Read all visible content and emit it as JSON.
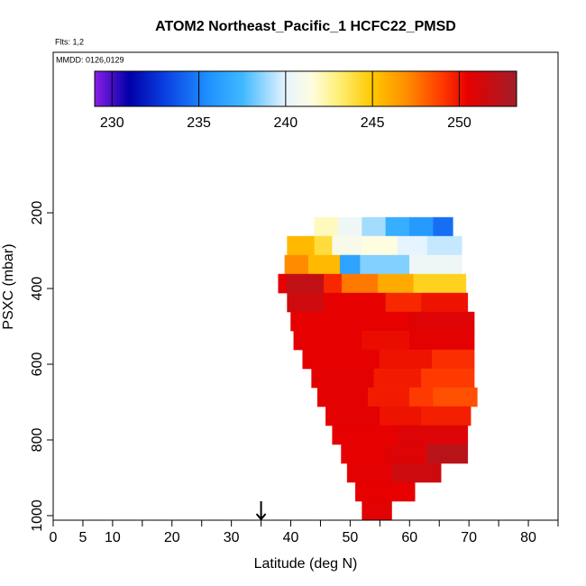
{
  "chart_data": {
    "type": "curtain",
    "title": "ATOM2 Northeast_Pacific_1 HCFC22_PMSD",
    "subtitle": "Flts: 1,2",
    "annotation": "MMDD: 0126,0129",
    "x_label": "Latitude (deg N)",
    "y_label": "PSXC (mbar)",
    "xlim": [
      0,
      85
    ],
    "xticks": [
      0,
      5,
      10,
      20,
      30,
      40,
      50,
      60,
      70,
      80
    ],
    "x_minor_ticks": [
      15,
      25,
      35,
      45,
      55,
      65,
      75,
      85
    ],
    "ylim": [
      1012,
      -224
    ],
    "yticks": [
      200,
      400,
      600,
      800,
      1000
    ],
    "clim": [
      229,
      253.3
    ],
    "cticks": [
      230,
      235,
      240,
      245,
      250
    ],
    "colormap": [
      [
        229,
        "#8a1ee6"
      ],
      [
        231,
        "#0000a8"
      ],
      [
        233,
        "#0a3ee0"
      ],
      [
        235.5,
        "#1e90ff"
      ],
      [
        237.5,
        "#3fb8ff"
      ],
      [
        240,
        "#e6f4ff"
      ],
      [
        241.5,
        "#fffde0"
      ],
      [
        243,
        "#fff07a"
      ],
      [
        245,
        "#ffc800"
      ],
      [
        247,
        "#ff8c00"
      ],
      [
        249,
        "#ff3a00"
      ],
      [
        250.5,
        "#e60000"
      ],
      [
        253.3,
        "#a01e28"
      ]
    ],
    "arrow_lat": 35,
    "rows": [
      {
        "p": [
          212,
          262
        ],
        "cells": [
          [
            44,
            48,
            242
          ],
          [
            48,
            52,
            240.5
          ],
          [
            52,
            56,
            239
          ],
          [
            56,
            60,
            237
          ],
          [
            60,
            64,
            236
          ],
          [
            64,
            67.3,
            234.5
          ]
        ]
      },
      {
        "p": [
          262,
          312
        ],
        "cells": [
          [
            39.4,
            44,
            245.5
          ],
          [
            44,
            47,
            244
          ],
          [
            47,
            52,
            241
          ],
          [
            52,
            58,
            241.5
          ],
          [
            58,
            63,
            240
          ],
          [
            63,
            68.8,
            239.5
          ]
        ]
      },
      {
        "p": [
          312,
          362
        ],
        "cells": [
          [
            39,
            43,
            247
          ],
          [
            43,
            48.3,
            245.5
          ],
          [
            48.3,
            51.7,
            236.5
          ],
          [
            51.7,
            60,
            238.5
          ],
          [
            60,
            68.8,
            240.5
          ]
        ]
      },
      {
        "p": [
          362,
          412
        ],
        "cells": [
          [
            37.9,
            39.3,
            250.5
          ],
          [
            39.3,
            45.6,
            252
          ],
          [
            45.6,
            48.6,
            249.5
          ],
          [
            48.6,
            54.7,
            247.5
          ],
          [
            54.7,
            60.7,
            246
          ],
          [
            60.7,
            69.5,
            244.5
          ]
        ]
      },
      {
        "p": [
          412,
          462
        ],
        "cells": [
          [
            39.4,
            45.6,
            251.5
          ],
          [
            45.6,
            56,
            250.5
          ],
          [
            56,
            62,
            249.5
          ],
          [
            62,
            69.8,
            250
          ]
        ]
      },
      {
        "p": [
          462,
          512
        ],
        "cells": [
          [
            40,
            50,
            250.5
          ],
          [
            50,
            60,
            250.5
          ],
          [
            60,
            70.9,
            250.8
          ]
        ]
      },
      {
        "p": [
          512,
          562
        ],
        "cells": [
          [
            40.5,
            52,
            250.5
          ],
          [
            52,
            60,
            250.2
          ],
          [
            60,
            70.9,
            250.6
          ]
        ]
      },
      {
        "p": [
          562,
          612
        ],
        "cells": [
          [
            42,
            55,
            250.5
          ],
          [
            55,
            63.8,
            250
          ],
          [
            63.8,
            70.9,
            249.3
          ]
        ]
      },
      {
        "p": [
          612,
          662
        ],
        "cells": [
          [
            43.5,
            54,
            250.6
          ],
          [
            54,
            62,
            249.8
          ],
          [
            62,
            70.9,
            249
          ]
        ]
      },
      {
        "p": [
          662,
          712
        ],
        "cells": [
          [
            44.5,
            53,
            250.6
          ],
          [
            53,
            60,
            249.8
          ],
          [
            60,
            64,
            249
          ],
          [
            64,
            71.4,
            248.5
          ]
        ]
      },
      {
        "p": [
          712,
          762
        ],
        "cells": [
          [
            45.9,
            55,
            250.6
          ],
          [
            55,
            62,
            250
          ],
          [
            62,
            70.3,
            249.7
          ]
        ]
      },
      {
        "p": [
          762,
          812
        ],
        "cells": [
          [
            47,
            58,
            250.5
          ],
          [
            58,
            69.8,
            250.9
          ]
        ]
      },
      {
        "p": [
          812,
          862
        ],
        "cells": [
          [
            48.5,
            56,
            250.5
          ],
          [
            56,
            63,
            250.8
          ],
          [
            63,
            69.8,
            252.3
          ]
        ]
      },
      {
        "p": [
          862,
          912
        ],
        "cells": [
          [
            49.5,
            57,
            250.6
          ],
          [
            57,
            65.3,
            251.5
          ]
        ]
      },
      {
        "p": [
          912,
          962
        ],
        "cells": [
          [
            50.9,
            60.9,
            250.5
          ]
        ]
      },
      {
        "p": [
          962,
          1012
        ],
        "cells": [
          [
            52,
            57,
            250.7
          ]
        ]
      }
    ]
  }
}
